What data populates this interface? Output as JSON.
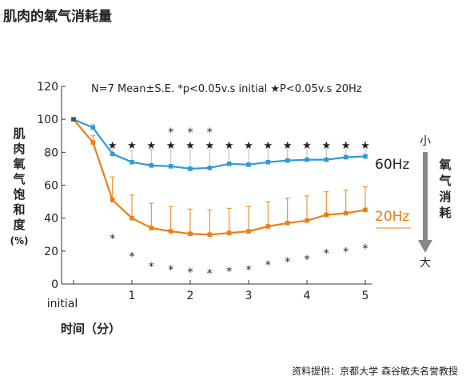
{
  "chart_data": {
    "type": "line",
    "title": "肌肉的氧气消耗量",
    "annotation": "N=7 Mean±S.E.  *p<0.05v.s initial  ★P<0.05v.s 20Hz",
    "ylabel_chars": [
      "肌",
      "肉",
      "氧",
      "气",
      "饱",
      "和",
      "度",
      "(%)"
    ],
    "xlabel": "时间（分）",
    "ylim": [
      0,
      120
    ],
    "yticks": [
      "0",
      "20",
      "40",
      "60",
      "80",
      "100",
      "120"
    ],
    "xlim": [
      0,
      5
    ],
    "xticks": [
      {
        "value": 0,
        "label": "initial"
      },
      {
        "value": 1,
        "label": "1"
      },
      {
        "value": 2,
        "label": "2"
      },
      {
        "value": 3,
        "label": "3"
      },
      {
        "value": 4,
        "label": "4"
      },
      {
        "value": 5,
        "label": "5"
      }
    ],
    "x": [
      0,
      0.333,
      0.667,
      1,
      1.333,
      1.667,
      2,
      2.333,
      2.667,
      3,
      3.333,
      3.667,
      4,
      4.333,
      4.667,
      5
    ],
    "series": [
      {
        "name": "60Hz",
        "color": "#2b9bd8",
        "values": [
          100,
          95,
          79,
          74,
          72,
          71.5,
          70,
          70.5,
          73,
          72.5,
          74,
          75,
          75.5,
          75.5,
          77,
          77.5
        ],
        "err": [
          1,
          2,
          6,
          7,
          10,
          12,
          14,
          13,
          12,
          11,
          10,
          10,
          10,
          10,
          9,
          9
        ],
        "star_marks": [
          false,
          false,
          true,
          true,
          true,
          true,
          true,
          true,
          true,
          true,
          true,
          true,
          true,
          true,
          true,
          true
        ],
        "ast_marks": [
          false,
          false,
          false,
          false,
          false,
          true,
          true,
          true,
          false,
          false,
          false,
          false,
          false,
          false,
          false,
          false
        ]
      },
      {
        "name": "20Hz",
        "color": "#ef7d12",
        "values": [
          100,
          86,
          51,
          40,
          34,
          32,
          30.5,
          30,
          31,
          32,
          35,
          37,
          38.5,
          42,
          43,
          45
        ],
        "err": [
          1,
          4,
          14,
          14,
          15,
          15,
          15,
          15,
          15,
          15,
          15,
          15,
          15,
          14,
          14,
          14
        ],
        "ast_marks": [
          false,
          false,
          true,
          true,
          true,
          true,
          true,
          true,
          true,
          true,
          true,
          true,
          true,
          true,
          true,
          true
        ]
      }
    ],
    "series_labels": [
      "60Hz",
      "20Hz"
    ],
    "arrow_labels": {
      "vertical": [
        "氧",
        "气",
        "消",
        "耗"
      ],
      "top": "小",
      "bottom": "大"
    },
    "star_symbol": "★",
    "ast_symbol": "*",
    "source": "资料提供：京都大学 森谷敏夫名誉教授"
  }
}
